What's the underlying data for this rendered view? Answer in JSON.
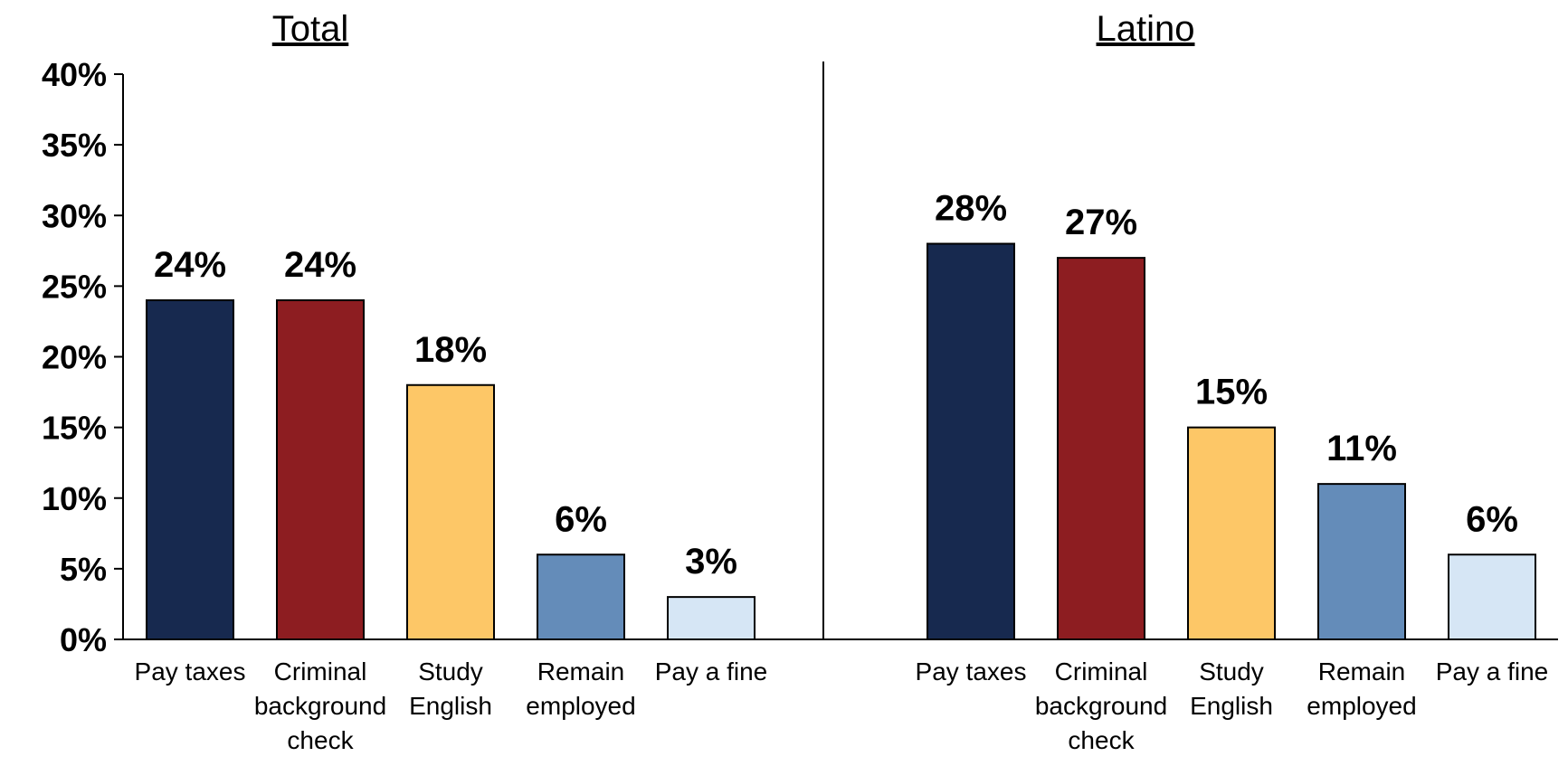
{
  "chart_data": {
    "type": "bar",
    "ylim": [
      0,
      40
    ],
    "yticks": [
      "0%",
      "5%",
      "10%",
      "15%",
      "20%",
      "25%",
      "30%",
      "35%",
      "40%"
    ],
    "grid": false,
    "categories": [
      "Pay taxes",
      "Criminal background check",
      "Study English",
      "Remain employed",
      "Pay a fine"
    ],
    "category_lines": [
      [
        "Pay taxes"
      ],
      [
        "Criminal",
        "background",
        "check"
      ],
      [
        "Study",
        "English"
      ],
      [
        "Remain",
        "employed"
      ],
      [
        "Pay a fine"
      ]
    ],
    "colors": [
      "#17294F",
      "#8D1D21",
      "#FDC767",
      "#648CB9",
      "#D6E6F5"
    ],
    "panels": [
      {
        "title": "Total",
        "values": [
          24,
          24,
          18,
          6,
          3
        ],
        "labels": [
          "24%",
          "24%",
          "18%",
          "6%",
          "3%"
        ]
      },
      {
        "title": "Latino",
        "values": [
          28,
          27,
          15,
          11,
          6
        ],
        "labels": [
          "28%",
          "27%",
          "15%",
          "11%",
          "6%"
        ]
      }
    ]
  }
}
